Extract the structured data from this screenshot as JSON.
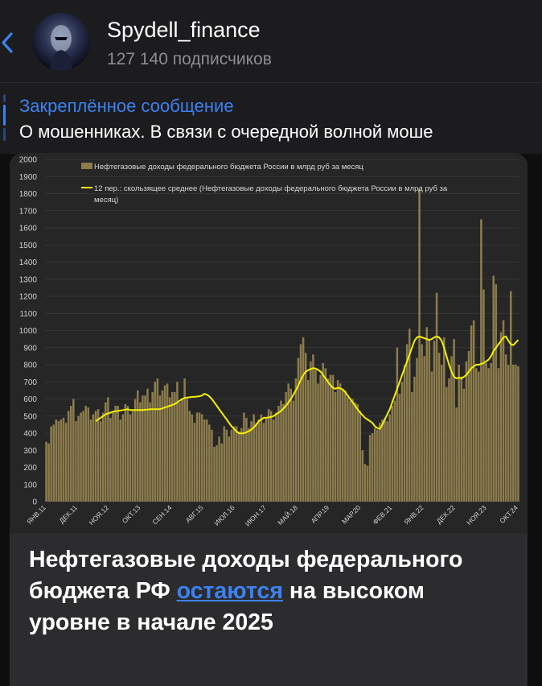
{
  "header": {
    "channel_name": "Spydell_finance",
    "subscribers": "127 140 подписчиков"
  },
  "pinned": {
    "title": "Закреплённое сообщение",
    "text": "О мошенниках.   В связи с очередной волной моше"
  },
  "message": {
    "caption_part1": "Нефтегазовые доходы федерального бюджета РФ ",
    "caption_link": "остаются",
    "caption_part2": " на высоком уровне в начале 2025"
  },
  "colors": {
    "accent": "#3c81f0",
    "bar": "#8c7c4c",
    "line": "#f5f000"
  },
  "chart_data": {
    "type": "bar",
    "ylim": [
      0,
      2000
    ],
    "yticks": [
      0,
      100,
      200,
      300,
      400,
      500,
      600,
      700,
      800,
      900,
      1000,
      1100,
      1200,
      1300,
      1400,
      1500,
      1600,
      1700,
      1800,
      1900,
      2000
    ],
    "xticks": [
      "ЯНВ.11",
      "ДЕК.11",
      "НОЯ.12",
      "ОКТ.13",
      "СЕН.14",
      "АВГ.15",
      "ИЮЛ.16",
      "ИЮН.17",
      "МАЙ.18",
      "АПР.19",
      "МАР.20",
      "ФЕВ.21",
      "ЯНВ.22",
      "ДЕК.22",
      "НОЯ.23",
      "ОКТ.24"
    ],
    "series": [
      {
        "name": "Нефтегазовые доходы федерального бюджета России в млрд руб за месяц",
        "kind": "bar",
        "values": [
          350,
          340,
          440,
          450,
          480,
          470,
          480,
          490,
          460,
          530,
          560,
          600,
          470,
          500,
          520,
          530,
          560,
          550,
          480,
          510,
          530,
          540,
          470,
          520,
          580,
          610,
          490,
          520,
          560,
          560,
          480,
          510,
          570,
          560,
          510,
          530,
          600,
          650,
          580,
          620,
          620,
          660,
          580,
          640,
          700,
          720,
          620,
          650,
          680,
          690,
          610,
          640,
          640,
          700,
          580,
          600,
          720,
          600,
          530,
          510,
          460,
          520,
          520,
          510,
          480,
          480,
          450,
          420,
          320,
          330,
          380,
          340,
          440,
          420,
          380,
          420,
          440,
          440,
          410,
          430,
          520,
          490,
          430,
          470,
          510,
          460,
          480,
          510,
          460,
          490,
          540,
          530,
          480,
          520,
          560,
          590,
          570,
          640,
          690,
          660,
          590,
          720,
          840,
          920,
          960,
          870,
          710,
          820,
          860,
          770,
          690,
          740,
          810,
          780,
          720,
          740,
          740,
          640,
          710,
          690,
          660,
          650,
          610,
          590,
          600,
          580,
          570,
          530,
          300,
          220,
          210,
          390,
          400,
          430,
          420,
          460,
          480,
          490,
          470,
          510,
          560,
          590,
          900,
          630,
          700,
          800,
          920,
          1010,
          640,
          730,
          840,
          1830,
          920,
          850,
          1020,
          950,
          760,
          940,
          1220,
          870,
          800,
          960,
          670,
          720,
          850,
          950,
          550,
          800,
          730,
          660,
          820,
          880,
          1030,
          1060,
          780,
          760,
          1650,
          1240,
          810,
          780,
          810,
          1320,
          1270,
          780,
          990,
          1060,
          860,
          800,
          1230,
          800,
          800,
          790
        ]
      },
      {
        "name": "12 пер.: скользящее среднее (Нефтегазовые доходы федерального бюджета России в млрд руб за месяц)",
        "kind": "line",
        "values": [
          470,
          480,
          490,
          500,
          510,
          515,
          520,
          525,
          528,
          530,
          532,
          535,
          538,
          540,
          535,
          535,
          535,
          535,
          535,
          535,
          537,
          538,
          540,
          540,
          540,
          540,
          540,
          545,
          550,
          555,
          560,
          565,
          570,
          580,
          590,
          600,
          605,
          608,
          610,
          612,
          612,
          614,
          616,
          620,
          630,
          625,
          615,
          600,
          580,
          560,
          540,
          520,
          500,
          480,
          460,
          440,
          425,
          410,
          400,
          398,
          400,
          405,
          412,
          420,
          435,
          450,
          470,
          480,
          490,
          490,
          492,
          495,
          500,
          510,
          520,
          530,
          545,
          560,
          580,
          600,
          625,
          650,
          680,
          710,
          740,
          760,
          768,
          775,
          780,
          778,
          770,
          760,
          740,
          720,
          700,
          680,
          665,
          660,
          665,
          662,
          655,
          640,
          620,
          600,
          580,
          560,
          540,
          520,
          505,
          490,
          480,
          470,
          460,
          440,
          430,
          425,
          450,
          480,
          510,
          540,
          580,
          620,
          660,
          700,
          740,
          780,
          820,
          860,
          900,
          940,
          960,
          965,
          960,
          955,
          950,
          945,
          950,
          960,
          965,
          960,
          940,
          900,
          850,
          800,
          760,
          730,
          720,
          725,
          720,
          730,
          740,
          760,
          780,
          790,
          800,
          800,
          805,
          810,
          820,
          830,
          850,
          880,
          900,
          920,
          940,
          960,
          965,
          940,
          920,
          915,
          930,
          945
        ]
      }
    ]
  }
}
